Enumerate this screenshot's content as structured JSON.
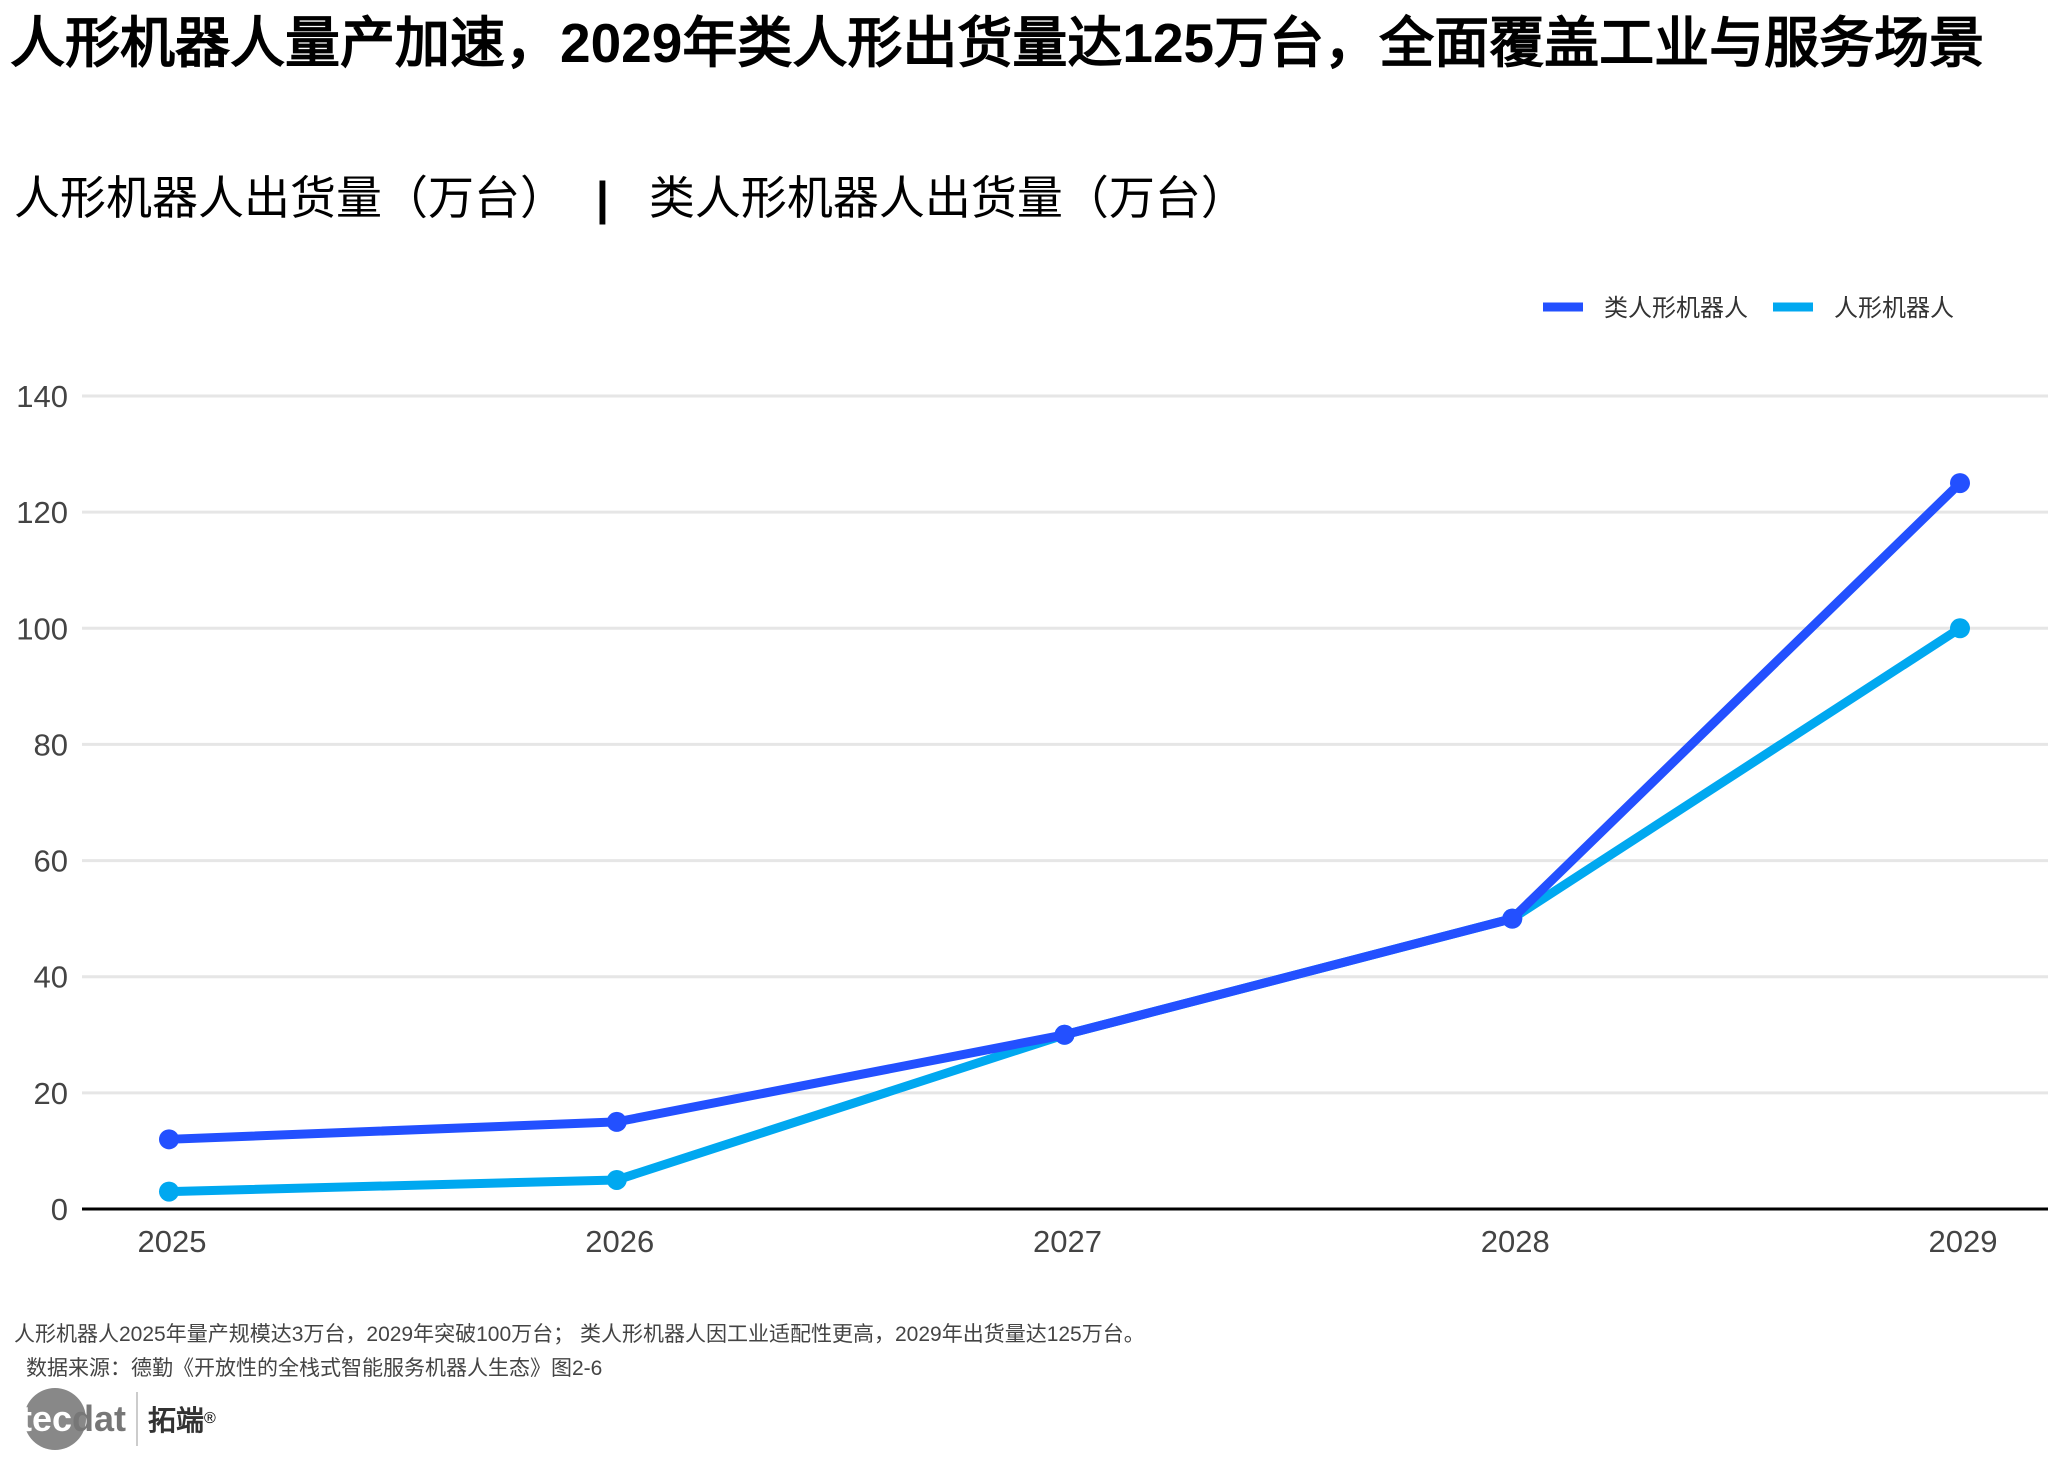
{
  "title": "人形机器人量产加速，2029年类人形出货量达125万台，全面覆盖工业与服务场景",
  "subtitle": {
    "left": "人形机器人出货量（万台）",
    "separator": "|",
    "right": "类人形机器人出货量（万台）"
  },
  "colors": {
    "humanoid_like": "#2350FF",
    "humanoid": "#00A8F0"
  },
  "chart_data": {
    "type": "line",
    "x": [
      "2025",
      "2026",
      "2027",
      "2028",
      "2029"
    ],
    "series": [
      {
        "name": "类人形机器人",
        "values": [
          12,
          15,
          30,
          50,
          125
        ]
      },
      {
        "name": "人形机器人",
        "values": [
          3,
          5,
          30,
          50,
          100
        ]
      }
    ],
    "ylim": [
      0,
      140
    ],
    "yticks": [
      "0",
      "20",
      "40",
      "60",
      "80",
      "100",
      "120",
      "140"
    ],
    "grid": true,
    "legend": "top-right"
  },
  "footer": {
    "note": "人形机器人2025年量产规模达3万台，2029年突破100万台； 类人形机器人因工业适配性更高，2029年出货量达125万台。",
    "source": "数据来源：德勤《开放性的全栈式智能服务机器人生态》图2-6"
  },
  "logo": {
    "tec": "tec",
    "dat": "dat",
    "cn": "拓端",
    "reg": "®"
  }
}
